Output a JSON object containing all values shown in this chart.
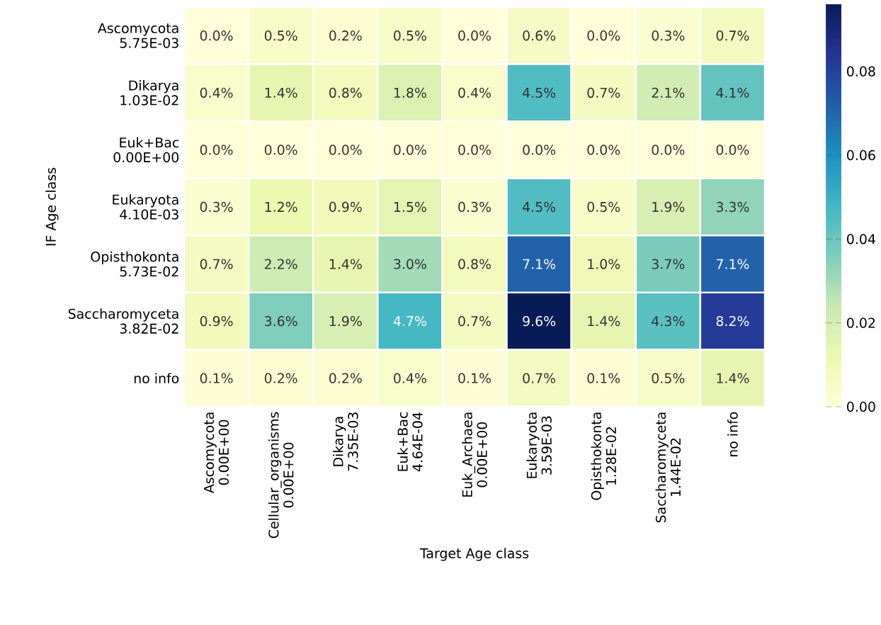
{
  "chart_data": {
    "type": "heatmap",
    "xlabel": "Target Age class",
    "ylabel": "IF Age class",
    "categories": [
      "Ascomycota\n0.00E+00",
      "Cellular_organisms\n0.00E+00",
      "Dikarya\n7.35E-03",
      "Euk+Bac\n4.64E-04",
      "Euk_Archaea\n0.00E+00",
      "Eukaryota\n3.59E-03",
      "Opisthokonta\n1.28E-02",
      "Saccharomyceta\n1.44E-02",
      "no info"
    ],
    "y_categories": [
      "Ascomycota\n5.75E-03",
      "Dikarya\n1.03E-02",
      "Euk+Bac\n0.00E+00",
      "Eukaryota\n4.10E-03",
      "Opisthokonta\n5.73E-02",
      "Saccharomyceta\n3.82E-02",
      "no info"
    ],
    "cells": [
      [
        0.0,
        0.005,
        0.002,
        0.005,
        0.0,
        0.006,
        0.0,
        0.003,
        0.007
      ],
      [
        0.004,
        0.014,
        0.008,
        0.018,
        0.004,
        0.045,
        0.007,
        0.021,
        0.041
      ],
      [
        0.0,
        0.0,
        0.0,
        0.0,
        0.0,
        0.0,
        0.0,
        0.0,
        0.0
      ],
      [
        0.003,
        0.012,
        0.009,
        0.015,
        0.003,
        0.045,
        0.005,
        0.019,
        0.033
      ],
      [
        0.007,
        0.022,
        0.014,
        0.03,
        0.008,
        0.071,
        0.01,
        0.037,
        0.071
      ],
      [
        0.009,
        0.036,
        0.019,
        0.047,
        0.007,
        0.096,
        0.014,
        0.043,
        0.082
      ],
      [
        0.001,
        0.002,
        0.002,
        0.004,
        0.001,
        0.007,
        0.001,
        0.005,
        0.014
      ]
    ],
    "cell_labels": [
      [
        "0.0%",
        "0.5%",
        "0.2%",
        "0.5%",
        "0.0%",
        "0.6%",
        "0.0%",
        "0.3%",
        "0.7%"
      ],
      [
        "0.4%",
        "1.4%",
        "0.8%",
        "1.8%",
        "0.4%",
        "4.5%",
        "0.7%",
        "2.1%",
        "4.1%"
      ],
      [
        "0.0%",
        "0.0%",
        "0.0%",
        "0.0%",
        "0.0%",
        "0.0%",
        "0.0%",
        "0.0%",
        "0.0%"
      ],
      [
        "0.3%",
        "1.2%",
        "0.9%",
        "1.5%",
        "0.3%",
        "4.5%",
        "0.5%",
        "1.9%",
        "3.3%"
      ],
      [
        "0.7%",
        "2.2%",
        "1.4%",
        "3.0%",
        "0.8%",
        "7.1%",
        "1.0%",
        "3.7%",
        "7.1%"
      ],
      [
        "0.9%",
        "3.6%",
        "1.9%",
        "4.7%",
        "0.7%",
        "9.6%",
        "1.4%",
        "4.3%",
        "8.2%"
      ],
      [
        "0.1%",
        "0.2%",
        "0.2%",
        "0.4%",
        "0.1%",
        "0.7%",
        "0.1%",
        "0.5%",
        "1.4%"
      ]
    ],
    "clim": [
      0,
      0.096
    ],
    "cticks": [
      {
        "value": 0,
        "label": "0.00"
      },
      {
        "value": 0.02,
        "label": "0.02"
      },
      {
        "value": 0.04,
        "label": "0.04"
      },
      {
        "value": 0.06,
        "label": "0.06"
      },
      {
        "value": 0.08,
        "label": "0.08"
      }
    ]
  }
}
